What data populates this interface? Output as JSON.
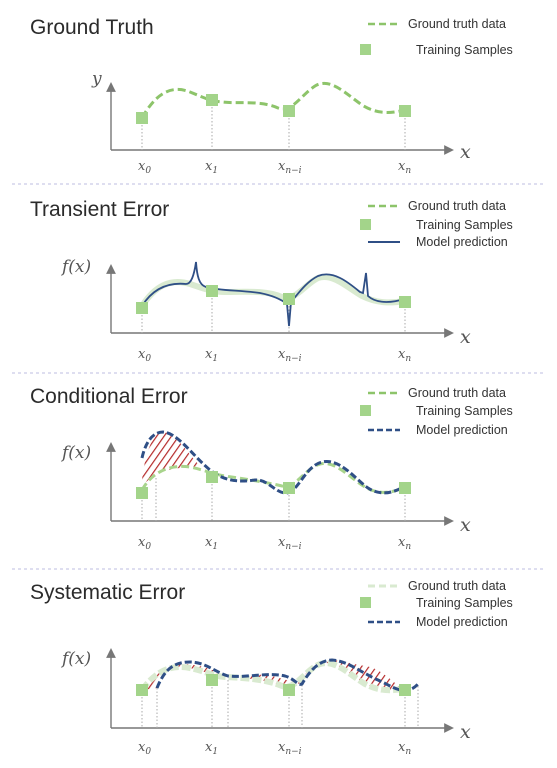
{
  "colors": {
    "ground_truth": "#8dc46a",
    "ground_truth_light": "#d9ead0",
    "sample": "#a3d48a",
    "model": "#2f4f86",
    "hatch": "#b52a2a"
  },
  "legend_labels": {
    "ground_truth": "Ground truth data",
    "samples": "Training Samples",
    "model": "Model prediction"
  },
  "ticks": {
    "x0": {
      "base": "x",
      "sub": "0"
    },
    "x1": {
      "base": "x",
      "sub": "1"
    },
    "xni": {
      "base": "x",
      "sub": "n−i"
    },
    "xn": {
      "base": "x",
      "sub": "n"
    }
  },
  "panels": [
    {
      "id": "ground-truth",
      "title": "Ground Truth",
      "y_axis_label": "y",
      "x_axis_label": "x"
    },
    {
      "id": "transient-error",
      "title": "Transient Error",
      "y_axis_label": "f(x)",
      "x_axis_label": "x"
    },
    {
      "id": "conditional-error",
      "title": "Conditional Error",
      "y_axis_label": "f(x)",
      "x_axis_label": "x"
    },
    {
      "id": "systematic-error",
      "title": "Systematic Error",
      "y_axis_label": "f(x)",
      "x_axis_label": "x"
    }
  ]
}
